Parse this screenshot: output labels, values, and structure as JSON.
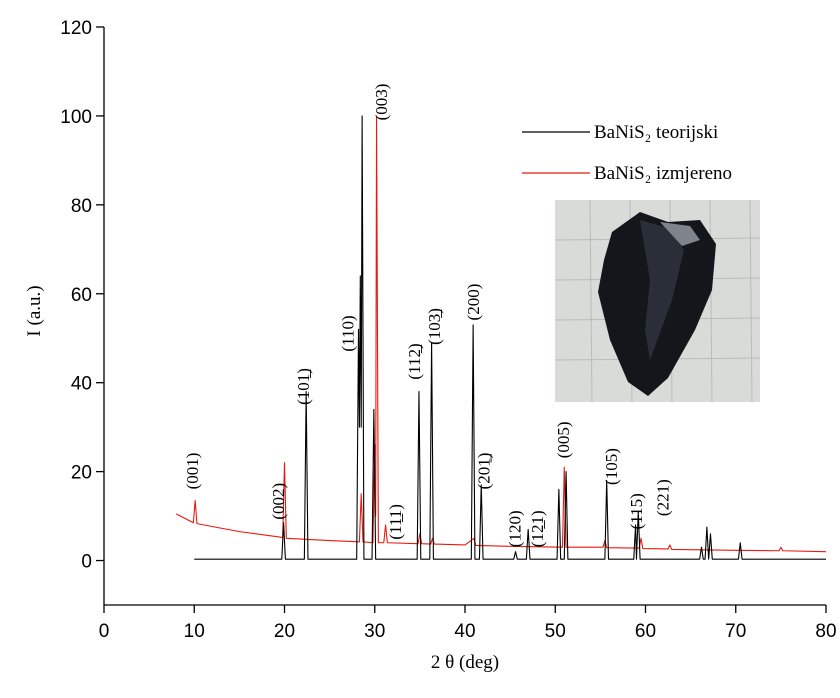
{
  "chart_data": {
    "type": "line",
    "xlabel": "2 θ (deg)",
    "ylabel": "I (a.u.)",
    "xlim": [
      0,
      80
    ],
    "ylim": [
      -10,
      120
    ],
    "xticks": [
      0,
      10,
      20,
      30,
      40,
      50,
      60,
      70,
      80
    ],
    "yticks": [
      0,
      20,
      40,
      60,
      80,
      100,
      120
    ],
    "legend": "upper right",
    "series": [
      {
        "name": "BaNiS₂ teorijski",
        "color": "#000000",
        "x": [
          10,
          19.7,
          19.9,
          20.1,
          22.2,
          22.4,
          22.6,
          28.0,
          28.2,
          28.3,
          28.4,
          28.5,
          28.6,
          28.8,
          29.7,
          29.9,
          30.1,
          34.7,
          34.9,
          35.1,
          36.1,
          36.3,
          36.5,
          40.7,
          40.9,
          41.1,
          41.6,
          41.8,
          42.0,
          45.4,
          45.6,
          45.8,
          46.8,
          47.0,
          47.2,
          50.2,
          50.4,
          50.6,
          51.0,
          51.2,
          51.4,
          55.5,
          55.7,
          55.9,
          58.7,
          58.9,
          59.0,
          59.2,
          59.4,
          66.0,
          66.2,
          66.4,
          66.6,
          66.8,
          67.0,
          67.2,
          67.4,
          70.3,
          70.5,
          70.7,
          80
        ],
        "values": [
          0.3,
          0.3,
          8.5,
          0.3,
          0.3,
          38,
          0.3,
          0.3,
          52,
          30,
          64,
          30,
          100,
          0.3,
          0.3,
          34,
          0.3,
          0.3,
          38,
          0.3,
          0.3,
          49,
          0.3,
          0.3,
          53,
          0.3,
          0.3,
          17,
          0.3,
          0.3,
          2,
          0.3,
          0.3,
          7,
          0.3,
          0.3,
          16,
          0.3,
          0.3,
          20,
          0.3,
          0.3,
          18,
          0.3,
          0.3,
          8,
          0.3,
          11,
          0.3,
          0.3,
          3,
          0.3,
          0.3,
          7.5,
          0.3,
          6,
          0.3,
          0.3,
          4,
          0.3,
          0.3
        ]
      },
      {
        "name": "BaNiS₂ izmjereno",
        "color": "#e8190f",
        "x": [
          8,
          9.9,
          10.1,
          10.3,
          15,
          19.8,
          20.0,
          20.2,
          25,
          28.3,
          28.5,
          28.7,
          29.8,
          30.0,
          30.1,
          30.2,
          30.4,
          31.0,
          31.2,
          31.4,
          34.8,
          35.0,
          35.2,
          36.2,
          36.4,
          36.6,
          40,
          41.0,
          41.2,
          45,
          50.8,
          51.0,
          51.2,
          55.3,
          55.5,
          55.7,
          59.3,
          59.5,
          59.7,
          62.5,
          62.7,
          62.9,
          70,
          74.8,
          75.0,
          75.2,
          80
        ],
        "values": [
          10.5,
          8.5,
          13.5,
          8.3,
          6.5,
          5.2,
          22,
          5,
          4.5,
          4.2,
          15,
          4.2,
          4,
          26,
          10,
          100,
          4,
          4,
          8,
          4,
          3.8,
          6,
          3.8,
          3.7,
          5,
          3.7,
          3.5,
          5,
          3.4,
          3.2,
          3,
          21,
          3,
          3,
          4.5,
          2.9,
          2.8,
          5,
          2.7,
          2.6,
          3.5,
          2.5,
          2.3,
          2.2,
          3,
          2.2,
          2
        ]
      }
    ],
    "annotations": [
      {
        "text": "(001)",
        "x": 10,
        "y": 16
      },
      {
        "text": "(002)",
        "x": 19.5,
        "y": 9.2
      },
      {
        "text": "(101̲)",
        "x": 22.3,
        "y": 35
      },
      {
        "text": "(110)",
        "x": 27.2,
        "y": 47
      },
      {
        "text": "(003)",
        "x": 30.9,
        "y": 99
      },
      {
        "text": "(11̲1)",
        "x": 32.5,
        "y": 4.7
      },
      {
        "text": "(112̲)",
        "x": 34.6,
        "y": 40.7
      },
      {
        "text": "(103̲)",
        "x": 36.8,
        "y": 48.5
      },
      {
        "text": "(200)",
        "x": 41.1,
        "y": 54
      },
      {
        "text": "(201̲)",
        "x": 42.3,
        "y": 16
      },
      {
        "text": "(120)",
        "x": 45.7,
        "y": 3
      },
      {
        "text": "(12̲1)",
        "x": 48.2,
        "y": 3
      },
      {
        "text": "(005)",
        "x": 51.1,
        "y": 23
      },
      {
        "text": "(105)",
        "x": 56.4,
        "y": 17
      },
      {
        "text": "(115)",
        "x": 59.2,
        "y": 7
      },
      {
        "text": "(221)",
        "x": 62.1,
        "y": 10
      }
    ]
  }
}
